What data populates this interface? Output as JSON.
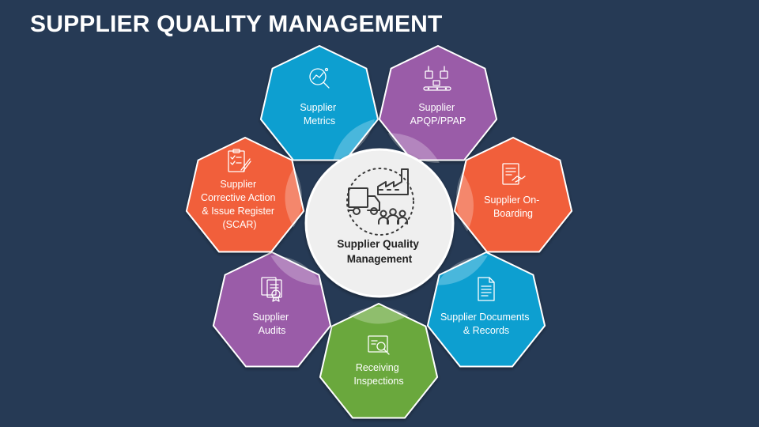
{
  "title": "SUPPLIER QUALITY MANAGEMENT",
  "center": {
    "line1": "Supplier Quality",
    "line2": "Management",
    "icon": "factory-truck-people-icon"
  },
  "nodes": [
    {
      "id": "metrics",
      "lines": [
        "Supplier",
        "Metrics"
      ],
      "color": "#0f9fd0",
      "icon": "magnifier-chart-icon"
    },
    {
      "id": "apqp",
      "lines": [
        "Supplier",
        "APQP/PPAP"
      ],
      "color": "#9a5ba8",
      "icon": "robot-conveyor-icon"
    },
    {
      "id": "onboarding",
      "lines": [
        "Supplier On-",
        "Boarding"
      ],
      "color": "#f15f3b",
      "icon": "contract-handshake-icon"
    },
    {
      "id": "documents",
      "lines": [
        "Supplier Documents",
        "& Records"
      ],
      "color": "#0f9fd0",
      "icon": "document-icon"
    },
    {
      "id": "receiving",
      "lines": [
        "Receiving",
        "Inspections"
      ],
      "color": "#6aa83e",
      "icon": "inspection-screen-icon"
    },
    {
      "id": "audits",
      "lines": [
        "Supplier",
        "Audits"
      ],
      "color": "#9a5ba8",
      "icon": "audit-documents-icon"
    },
    {
      "id": "scar",
      "lines": [
        "Supplier",
        "Corrective Action",
        "& Issue Register",
        "(SCAR)"
      ],
      "color": "#f15f3b",
      "icon": "checklist-pen-icon"
    }
  ]
}
